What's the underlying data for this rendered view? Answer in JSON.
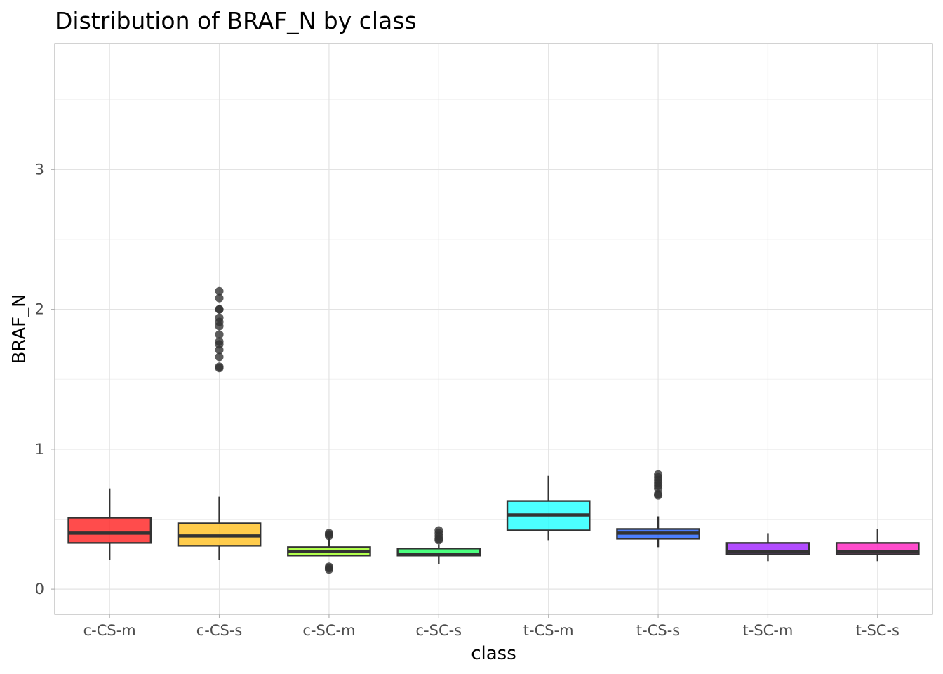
{
  "chart_data": {
    "type": "boxplot",
    "title": "Distribution of BRAF_N by class",
    "xlabel": "class",
    "ylabel": "BRAF_N",
    "ylim": [
      -0.18,
      3.9
    ],
    "y_ticks": [
      0,
      1,
      2,
      3
    ],
    "grid": true,
    "legend": "none",
    "categories": [
      "c-CS-m",
      "c-CS-s",
      "c-SC-m",
      "c-SC-s",
      "t-CS-m",
      "t-CS-s",
      "t-SC-m",
      "t-SC-s"
    ],
    "boxes": [
      {
        "class": "c-CS-m",
        "color": "#ff1f1f",
        "min": 0.21,
        "q1": 0.33,
        "median": 0.4,
        "q3": 0.51,
        "max": 0.72,
        "outliers": []
      },
      {
        "class": "c-CS-s",
        "color": "#ffbf1f",
        "min": 0.21,
        "q1": 0.31,
        "median": 0.38,
        "q3": 0.47,
        "max": 0.66,
        "outliers": [
          2.13,
          2.08,
          2.0,
          2.0,
          1.94,
          1.91,
          1.88,
          1.82,
          1.77,
          1.75,
          1.71,
          1.66,
          1.59,
          1.58
        ]
      },
      {
        "class": "c-SC-m",
        "color": "#9fff1f",
        "min": 0.24,
        "q1": 0.24,
        "median": 0.27,
        "q3": 0.3,
        "max": 0.37,
        "outliers": [
          0.4,
          0.39,
          0.38,
          0.16,
          0.15,
          0.14
        ]
      },
      {
        "class": "c-SC-s",
        "color": "#1fff5f",
        "min": 0.18,
        "q1": 0.24,
        "median": 0.25,
        "q3": 0.29,
        "max": 0.32,
        "outliers": [
          0.42,
          0.4,
          0.38,
          0.36,
          0.35
        ]
      },
      {
        "class": "t-CS-m",
        "color": "#1fffff",
        "min": 0.35,
        "q1": 0.42,
        "median": 0.53,
        "q3": 0.63,
        "max": 0.81,
        "outliers": []
      },
      {
        "class": "t-CS-s",
        "color": "#1f5fff",
        "min": 0.3,
        "q1": 0.36,
        "median": 0.4,
        "q3": 0.43,
        "max": 0.52,
        "outliers": [
          0.82,
          0.8,
          0.78,
          0.76,
          0.74,
          0.72,
          0.68,
          0.67
        ]
      },
      {
        "class": "t-SC-m",
        "color": "#9f1fff",
        "min": 0.2,
        "q1": 0.25,
        "median": 0.27,
        "q3": 0.33,
        "max": 0.4,
        "outliers": []
      },
      {
        "class": "t-SC-s",
        "color": "#ff1fbf",
        "min": 0.2,
        "q1": 0.25,
        "median": 0.27,
        "q3": 0.33,
        "max": 0.43,
        "outliers": []
      }
    ]
  }
}
